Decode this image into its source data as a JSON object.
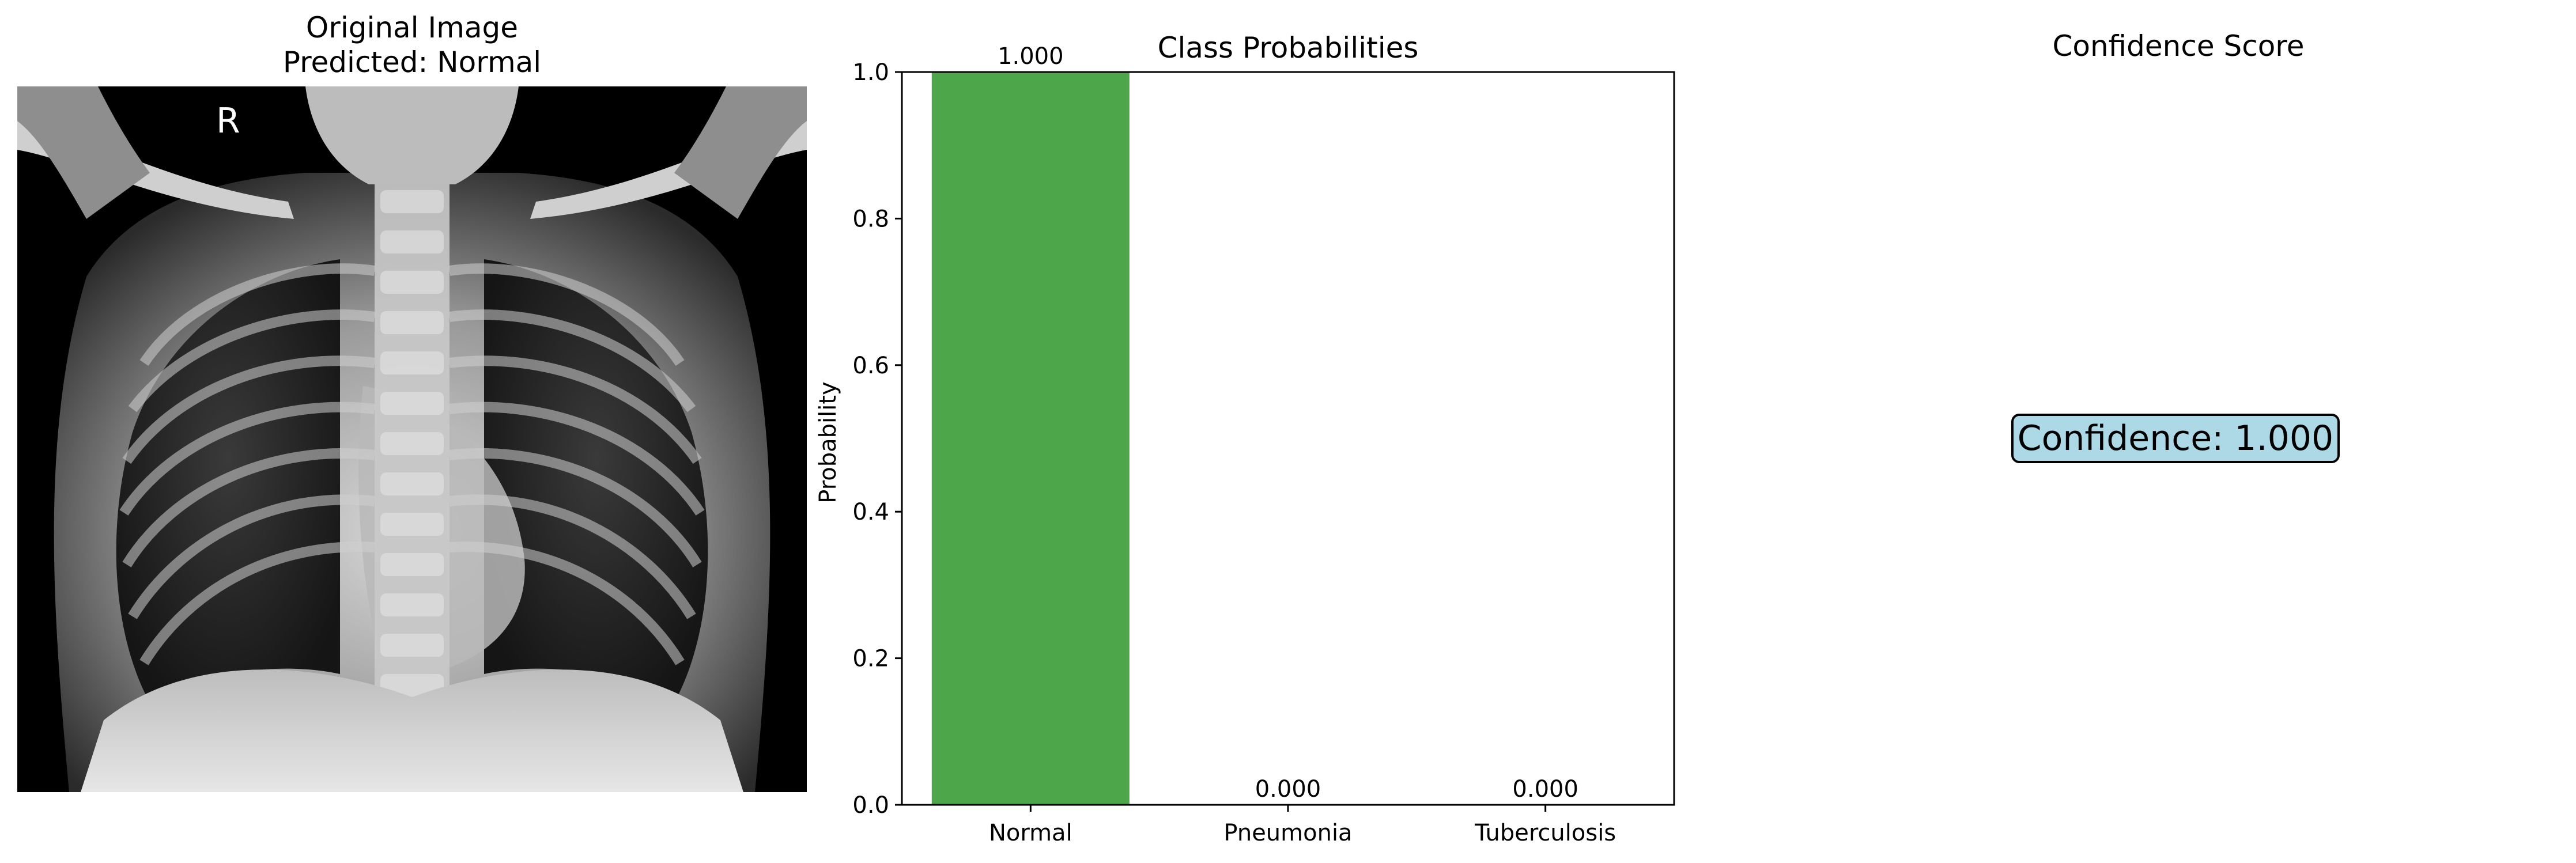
{
  "image_panel": {
    "title_line1": "Original Image",
    "title_line2": "Predicted: Normal",
    "marker_letter": "R"
  },
  "confidence_panel": {
    "title": "Confidence Score",
    "label": "Confidence: 1.000",
    "box_color": "#add8e6"
  },
  "chart_data": {
    "type": "bar",
    "title": "Class Probabilities",
    "xlabel": "",
    "ylabel": "Probability",
    "categories": [
      "Normal",
      "Pneumonia",
      "Tuberculosis"
    ],
    "values": [
      1.0,
      0.0,
      0.0
    ],
    "data_labels": [
      "1.000",
      "0.000",
      "0.000"
    ],
    "ylim": [
      0,
      1.0
    ],
    "yticks": [
      "0.0",
      "0.2",
      "0.4",
      "0.6",
      "0.8",
      "1.0"
    ],
    "grid": false,
    "colors": [
      "#4ea64b",
      "#e24a33",
      "#ff9800"
    ]
  }
}
